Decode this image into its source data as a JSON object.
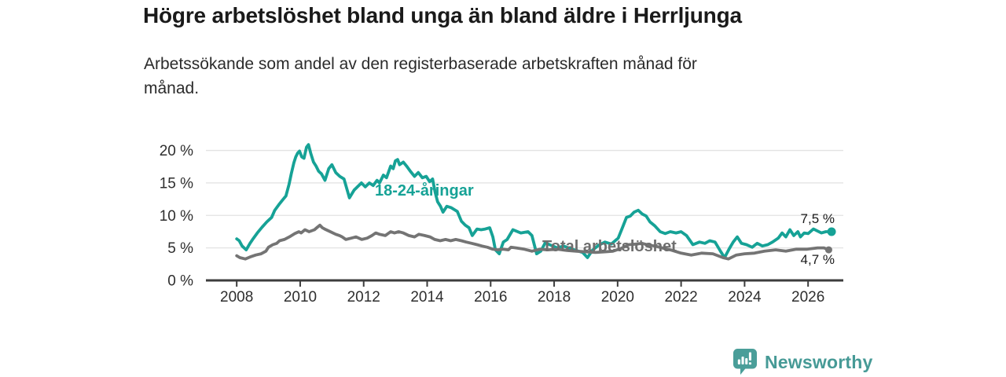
{
  "header": {
    "title": "Högre arbetslöshet bland unga än bland äldre i Herrljunga",
    "subtitle": "Arbetssökande som andel av den registerbaserade arbetskraften månad för månad.",
    "subtitle_line1": "Arbetssökande som andel av den registerbaserade arbetskraften månad för",
    "subtitle_line2": "månad."
  },
  "chart_data": {
    "type": "line",
    "title": "Högre arbetslöshet bland unga än bland äldre i Herrljunga",
    "subtitle": "Arbetssökande som andel av den registerbaserade arbetskraften månad för månad.",
    "xlabel": "",
    "ylabel": "",
    "x_unit": "decimal year, monthly observations",
    "xlim": [
      2007.03,
      2027.11
    ],
    "ylim": [
      0,
      22
    ],
    "xticks": [
      2008,
      2010,
      2012,
      2014,
      2016,
      2018,
      2020,
      2022,
      2024,
      2026
    ],
    "yticks": [
      {
        "value": 0,
        "label": "0 %"
      },
      {
        "value": 5,
        "label": "5 %"
      },
      {
        "value": 10,
        "label": "10 %"
      },
      {
        "value": 15,
        "label": "15 %"
      },
      {
        "value": 20,
        "label": "20 %"
      }
    ],
    "grid": "horizontal",
    "legend_position": "inline-labels",
    "colors": {
      "youth": "#16a296",
      "total": "#747474",
      "grid": "#e2e2e2",
      "axis": "#3d3d3d",
      "tick_text": "#2e2e2e"
    },
    "series": [
      {
        "name": "18-24-aringar",
        "label": "18-24-åringar",
        "color": "#16a296",
        "end_value": 7.5,
        "end_label": "7,5 %",
        "points": [
          [
            2008.0,
            6.4
          ],
          [
            2008.08,
            6.1
          ],
          [
            2008.17,
            5.3
          ],
          [
            2008.3,
            4.7
          ],
          [
            2008.42,
            5.7
          ],
          [
            2008.5,
            6.3
          ],
          [
            2008.65,
            7.3
          ],
          [
            2008.8,
            8.2
          ],
          [
            2008.95,
            9.0
          ],
          [
            2009.1,
            9.7
          ],
          [
            2009.2,
            10.8
          ],
          [
            2009.35,
            11.8
          ],
          [
            2009.45,
            12.4
          ],
          [
            2009.55,
            13.0
          ],
          [
            2009.65,
            14.8
          ],
          [
            2009.72,
            16.4
          ],
          [
            2009.8,
            18.1
          ],
          [
            2009.86,
            19.0
          ],
          [
            2009.92,
            19.6
          ],
          [
            2009.98,
            19.9
          ],
          [
            2010.05,
            19.0
          ],
          [
            2010.12,
            18.8
          ],
          [
            2010.2,
            20.5
          ],
          [
            2010.26,
            20.9
          ],
          [
            2010.33,
            19.6
          ],
          [
            2010.42,
            18.2
          ],
          [
            2010.5,
            17.6
          ],
          [
            2010.58,
            16.8
          ],
          [
            2010.67,
            16.4
          ],
          [
            2010.78,
            15.4
          ],
          [
            2010.9,
            17.2
          ],
          [
            2011.0,
            17.8
          ],
          [
            2011.12,
            16.6
          ],
          [
            2011.25,
            16.0
          ],
          [
            2011.38,
            15.6
          ],
          [
            2011.55,
            12.7
          ],
          [
            2011.7,
            13.9
          ],
          [
            2011.93,
            15.0
          ],
          [
            2012.05,
            14.4
          ],
          [
            2012.18,
            15.0
          ],
          [
            2012.3,
            14.6
          ],
          [
            2012.42,
            15.4
          ],
          [
            2012.5,
            15.0
          ],
          [
            2012.62,
            16.2
          ],
          [
            2012.72,
            15.8
          ],
          [
            2012.85,
            17.6
          ],
          [
            2012.93,
            17.2
          ],
          [
            2013.0,
            18.4
          ],
          [
            2013.07,
            18.6
          ],
          [
            2013.13,
            17.8
          ],
          [
            2013.25,
            18.2
          ],
          [
            2013.35,
            17.6
          ],
          [
            2013.47,
            16.8
          ],
          [
            2013.6,
            16.0
          ],
          [
            2013.72,
            16.6
          ],
          [
            2013.85,
            15.8
          ],
          [
            2013.97,
            16.0
          ],
          [
            2014.08,
            15.2
          ],
          [
            2014.17,
            15.6
          ],
          [
            2014.25,
            13.6
          ],
          [
            2014.33,
            12.1
          ],
          [
            2014.42,
            11.4
          ],
          [
            2014.5,
            10.5
          ],
          [
            2014.62,
            11.4
          ],
          [
            2014.75,
            11.2
          ],
          [
            2014.95,
            10.6
          ],
          [
            2015.08,
            9.1
          ],
          [
            2015.2,
            8.5
          ],
          [
            2015.32,
            8.1
          ],
          [
            2015.42,
            6.9
          ],
          [
            2015.57,
            7.9
          ],
          [
            2015.7,
            7.8
          ],
          [
            2015.83,
            7.9
          ],
          [
            2015.97,
            8.1
          ],
          [
            2016.07,
            6.7
          ],
          [
            2016.15,
            4.7
          ],
          [
            2016.27,
            4.1
          ],
          [
            2016.4,
            5.9
          ],
          [
            2016.52,
            6.3
          ],
          [
            2016.7,
            7.8
          ],
          [
            2016.95,
            7.3
          ],
          [
            2017.18,
            7.5
          ],
          [
            2017.3,
            6.9
          ],
          [
            2017.45,
            4.1
          ],
          [
            2017.58,
            4.5
          ],
          [
            2017.72,
            5.8
          ],
          [
            2017.9,
            5.4
          ],
          [
            2018.1,
            5.0
          ],
          [
            2018.3,
            5.3
          ],
          [
            2018.5,
            4.9
          ],
          [
            2018.7,
            4.6
          ],
          [
            2018.9,
            4.3
          ],
          [
            2019.05,
            3.5
          ],
          [
            2019.2,
            4.6
          ],
          [
            2019.4,
            5.4
          ],
          [
            2019.6,
            5.9
          ],
          [
            2019.8,
            5.6
          ],
          [
            2020.02,
            6.5
          ],
          [
            2020.15,
            8.1
          ],
          [
            2020.28,
            9.7
          ],
          [
            2020.4,
            9.9
          ],
          [
            2020.52,
            10.5
          ],
          [
            2020.65,
            10.8
          ],
          [
            2020.78,
            10.2
          ],
          [
            2020.9,
            9.9
          ],
          [
            2021.02,
            9.0
          ],
          [
            2021.17,
            8.4
          ],
          [
            2021.34,
            7.5
          ],
          [
            2021.5,
            7.2
          ],
          [
            2021.66,
            7.5
          ],
          [
            2021.84,
            7.3
          ],
          [
            2022.0,
            7.5
          ],
          [
            2022.17,
            6.9
          ],
          [
            2022.37,
            5.5
          ],
          [
            2022.58,
            5.9
          ],
          [
            2022.75,
            5.7
          ],
          [
            2022.9,
            6.1
          ],
          [
            2023.07,
            5.9
          ],
          [
            2023.24,
            4.5
          ],
          [
            2023.37,
            3.5
          ],
          [
            2023.52,
            4.9
          ],
          [
            2023.64,
            5.9
          ],
          [
            2023.77,
            6.7
          ],
          [
            2023.9,
            5.7
          ],
          [
            2024.06,
            5.5
          ],
          [
            2024.24,
            5.1
          ],
          [
            2024.4,
            5.7
          ],
          [
            2024.56,
            5.3
          ],
          [
            2024.73,
            5.5
          ],
          [
            2024.88,
            5.9
          ],
          [
            2025.06,
            6.5
          ],
          [
            2025.18,
            7.3
          ],
          [
            2025.3,
            6.7
          ],
          [
            2025.43,
            7.8
          ],
          [
            2025.55,
            6.9
          ],
          [
            2025.68,
            7.5
          ],
          [
            2025.76,
            6.7
          ],
          [
            2025.88,
            7.3
          ],
          [
            2026.0,
            7.2
          ],
          [
            2026.17,
            7.9
          ],
          [
            2026.42,
            7.3
          ],
          [
            2026.56,
            7.5
          ],
          [
            2026.74,
            7.5
          ]
        ]
      },
      {
        "name": "total-arbetsloshet",
        "label": "Total arbetslöshet",
        "color": "#747474",
        "end_value": 4.7,
        "end_label": "4,7 %",
        "points": [
          [
            2008.0,
            3.8
          ],
          [
            2008.1,
            3.5
          ],
          [
            2008.27,
            3.3
          ],
          [
            2008.42,
            3.6
          ],
          [
            2008.6,
            3.9
          ],
          [
            2008.77,
            4.1
          ],
          [
            2008.92,
            4.5
          ],
          [
            2009.0,
            5.1
          ],
          [
            2009.14,
            5.5
          ],
          [
            2009.26,
            5.7
          ],
          [
            2009.35,
            6.1
          ],
          [
            2009.5,
            6.3
          ],
          [
            2009.66,
            6.7
          ],
          [
            2009.83,
            7.2
          ],
          [
            2009.96,
            7.5
          ],
          [
            2010.03,
            7.3
          ],
          [
            2010.15,
            7.8
          ],
          [
            2010.28,
            7.5
          ],
          [
            2010.45,
            7.8
          ],
          [
            2010.52,
            8.1
          ],
          [
            2010.62,
            8.5
          ],
          [
            2010.7,
            8.1
          ],
          [
            2010.77,
            7.9
          ],
          [
            2010.95,
            7.5
          ],
          [
            2011.12,
            7.1
          ],
          [
            2011.24,
            6.9
          ],
          [
            2011.32,
            6.7
          ],
          [
            2011.44,
            6.3
          ],
          [
            2011.61,
            6.5
          ],
          [
            2011.76,
            6.7
          ],
          [
            2011.94,
            6.3
          ],
          [
            2012.11,
            6.5
          ],
          [
            2012.26,
            6.9
          ],
          [
            2012.38,
            7.3
          ],
          [
            2012.5,
            7.1
          ],
          [
            2012.68,
            6.9
          ],
          [
            2012.85,
            7.5
          ],
          [
            2012.97,
            7.3
          ],
          [
            2013.1,
            7.5
          ],
          [
            2013.25,
            7.3
          ],
          [
            2013.42,
            6.9
          ],
          [
            2013.6,
            6.7
          ],
          [
            2013.74,
            7.1
          ],
          [
            2013.92,
            6.9
          ],
          [
            2014.09,
            6.7
          ],
          [
            2014.24,
            6.3
          ],
          [
            2014.41,
            6.1
          ],
          [
            2014.58,
            6.3
          ],
          [
            2014.74,
            6.1
          ],
          [
            2014.9,
            6.3
          ],
          [
            2015.08,
            6.1
          ],
          [
            2015.23,
            5.9
          ],
          [
            2015.4,
            5.7
          ],
          [
            2015.57,
            5.5
          ],
          [
            2015.72,
            5.3
          ],
          [
            2015.9,
            5.1
          ],
          [
            2016.07,
            4.8
          ],
          [
            2016.22,
            4.7
          ],
          [
            2016.39,
            4.8
          ],
          [
            2016.56,
            4.7
          ],
          [
            2016.64,
            5.1
          ],
          [
            2016.8,
            5.0
          ],
          [
            2017.06,
            4.8
          ],
          [
            2017.3,
            4.5
          ],
          [
            2017.55,
            4.8
          ],
          [
            2017.8,
            4.7
          ],
          [
            2018.1,
            4.8
          ],
          [
            2018.4,
            4.6
          ],
          [
            2018.7,
            4.5
          ],
          [
            2019.0,
            4.4
          ],
          [
            2019.3,
            4.3
          ],
          [
            2019.6,
            4.4
          ],
          [
            2019.85,
            4.5
          ],
          [
            2020.1,
            4.9
          ],
          [
            2020.35,
            5.5
          ],
          [
            2020.6,
            5.6
          ],
          [
            2020.77,
            5.7
          ],
          [
            2021.0,
            5.4
          ],
          [
            2021.17,
            5.3
          ],
          [
            2021.4,
            5.0
          ],
          [
            2021.66,
            4.7
          ],
          [
            2022.0,
            4.2
          ],
          [
            2022.32,
            3.9
          ],
          [
            2022.65,
            4.2
          ],
          [
            2023.0,
            4.1
          ],
          [
            2023.32,
            3.5
          ],
          [
            2023.49,
            3.3
          ],
          [
            2023.74,
            3.9
          ],
          [
            2024.0,
            4.1
          ],
          [
            2024.31,
            4.2
          ],
          [
            2024.63,
            4.5
          ],
          [
            2024.98,
            4.7
          ],
          [
            2025.3,
            4.5
          ],
          [
            2025.63,
            4.8
          ],
          [
            2025.97,
            4.8
          ],
          [
            2026.3,
            5.0
          ],
          [
            2026.5,
            5.0
          ],
          [
            2026.65,
            4.7
          ]
        ]
      }
    ]
  },
  "footer": {
    "brand": "Newsworthy",
    "logo_icon": "bar-chart-speech-bubble-icon",
    "logo_color": "#4a9e99"
  }
}
